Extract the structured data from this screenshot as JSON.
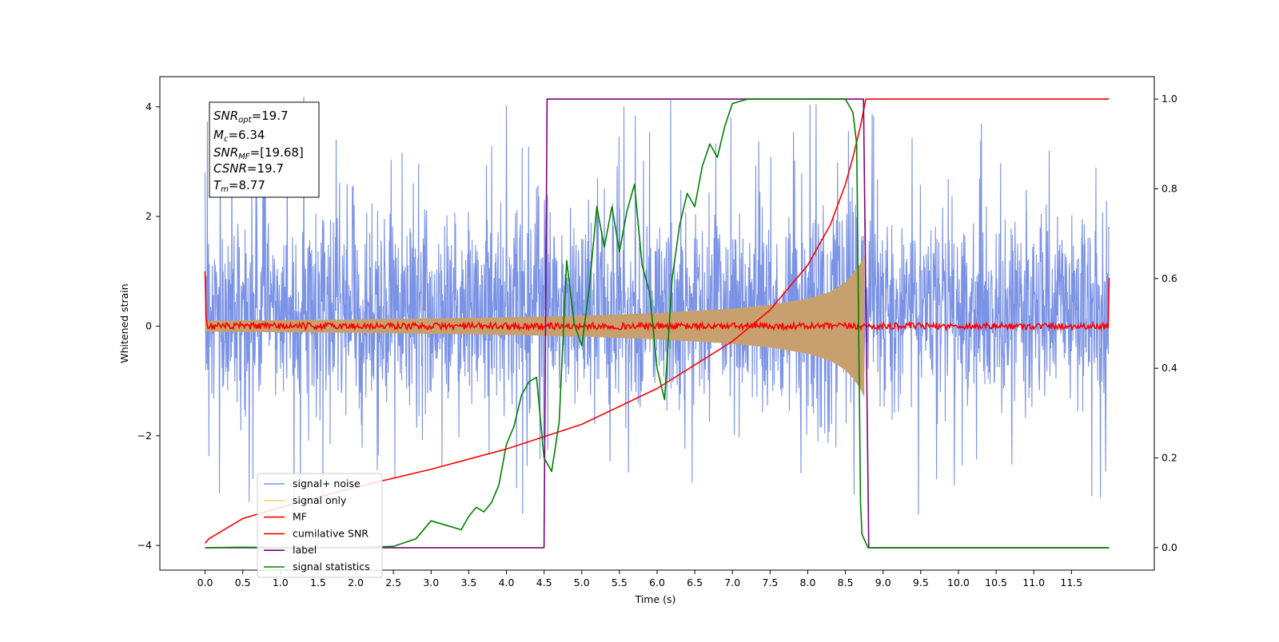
{
  "chart_data": {
    "type": "line",
    "xlabel": "Time (s)",
    "ylabel": "Whitened strain",
    "xlim": [
      -0.6,
      12.6
    ],
    "ylim_left": [
      -4.45,
      4.55
    ],
    "ylim_right": [
      -0.05,
      1.05
    ],
    "x_ticks": [
      "0.0",
      "0.5",
      "1.0",
      "1.5",
      "2.0",
      "2.5",
      "3.0",
      "3.5",
      "4.0",
      "4.5",
      "5.0",
      "5.5",
      "6.0",
      "6.5",
      "7.0",
      "7.5",
      "8.0",
      "8.5",
      "9.0",
      "9.5",
      "10.0",
      "10.5",
      "11.0",
      "11.5"
    ],
    "y_ticks_left": [
      "4",
      "2",
      "0",
      "−2",
      "−4"
    ],
    "y_ticks_right": [
      "1.0",
      "0.8",
      "0.6",
      "0.4",
      "0.2",
      "0.0"
    ],
    "annotation": {
      "snr_opt": {
        "symbol": "SNR",
        "sub": "opt",
        "value": "=19.7"
      },
      "mc": {
        "symbol": "M",
        "sub": "c",
        "value": "=6.34"
      },
      "snr_mf": {
        "symbol": "SNR",
        "sub": "MF",
        "value": "=[19.68]"
      },
      "csnr": {
        "symbol": "CSNR",
        "value": "=19.7"
      },
      "tm": {
        "symbol": "T",
        "sub": "m",
        "value": "=8.77"
      }
    },
    "legend": {
      "location": "lower-left",
      "entries": [
        {
          "label": "signal+ noise",
          "color": "#7b93e6"
        },
        {
          "label": "signal only",
          "color": "#ffd27f"
        },
        {
          "label": "MF",
          "color": "#ff0000"
        },
        {
          "label": "cumilative SNR",
          "color": "#ff0000"
        },
        {
          "label": "label",
          "color": "#800080"
        },
        {
          "label": "signal statistics",
          "color": "#008000"
        }
      ]
    },
    "series": [
      {
        "name": "signal+ noise",
        "axis": "left",
        "color": "#7b93e6",
        "x_range": [
          0,
          12
        ],
        "envelope_approx": [
          -3.5,
          4.2
        ],
        "typical_band": [
          -2.2,
          2.8
        ]
      },
      {
        "name": "signal only",
        "axis": "left",
        "color": "#c8a06e",
        "chirp_envelope": {
          "x": [
            0.0,
            2.0,
            4.0,
            5.0,
            6.0,
            7.0,
            7.5,
            8.0,
            8.3,
            8.5,
            8.6,
            8.7,
            8.75
          ],
          "amp": [
            0.1,
            0.12,
            0.16,
            0.19,
            0.24,
            0.32,
            0.39,
            0.5,
            0.63,
            0.8,
            0.95,
            1.15,
            1.3
          ]
        }
      },
      {
        "name": "MF",
        "axis": "left",
        "color": "#ff0000",
        "baseline": 0.0,
        "noise_amplitude": 0.06,
        "edge_values": [
          1.0,
          0.88
        ]
      },
      {
        "name": "cumilative SNR",
        "axis": "right",
        "color": "#ff0000",
        "x": [
          0.0,
          0.05,
          0.5,
          1.0,
          2.0,
          3.0,
          4.0,
          5.0,
          6.0,
          7.0,
          7.5,
          8.0,
          8.3,
          8.5,
          8.6,
          8.7,
          8.77,
          9.0,
          12.0
        ],
        "y": [
          0.01,
          0.02,
          0.065,
          0.09,
          0.135,
          0.175,
          0.22,
          0.275,
          0.355,
          0.46,
          0.53,
          0.63,
          0.72,
          0.81,
          0.87,
          0.94,
          1.0,
          1.0,
          1.0
        ]
      },
      {
        "name": "label",
        "axis": "right",
        "color": "#800080",
        "x": [
          0.0,
          4.5,
          4.54,
          8.7,
          8.74,
          8.81,
          12.0
        ],
        "y": [
          0.0,
          0.0,
          1.0,
          1.0,
          1.0,
          0.0,
          0.0
        ]
      },
      {
        "name": "signal statistics",
        "axis": "right",
        "color": "#008000",
        "x": [
          0.0,
          0.5,
          1.0,
          2.0,
          2.5,
          2.8,
          3.0,
          3.2,
          3.4,
          3.5,
          3.6,
          3.7,
          3.8,
          3.9,
          4.0,
          4.1,
          4.2,
          4.3,
          4.4,
          4.5,
          4.6,
          4.7,
          4.8,
          4.9,
          5.0,
          5.1,
          5.2,
          5.3,
          5.4,
          5.5,
          5.6,
          5.7,
          5.8,
          5.9,
          6.0,
          6.1,
          6.2,
          6.3,
          6.4,
          6.5,
          6.6,
          6.7,
          6.8,
          6.9,
          7.0,
          7.2,
          7.5,
          8.0,
          8.5,
          8.6,
          8.65,
          8.7,
          8.72,
          8.8,
          9.0,
          12.0
        ],
        "y": [
          0.0,
          0.001,
          0.0,
          0.0,
          0.003,
          0.02,
          0.06,
          0.05,
          0.04,
          0.07,
          0.09,
          0.08,
          0.1,
          0.14,
          0.23,
          0.27,
          0.34,
          0.37,
          0.38,
          0.2,
          0.17,
          0.28,
          0.64,
          0.5,
          0.45,
          0.58,
          0.76,
          0.67,
          0.76,
          0.66,
          0.75,
          0.81,
          0.63,
          0.57,
          0.4,
          0.33,
          0.6,
          0.72,
          0.79,
          0.76,
          0.85,
          0.9,
          0.87,
          0.94,
          0.99,
          1.0,
          1.0,
          1.0,
          1.0,
          0.97,
          0.9,
          0.1,
          0.03,
          0.0,
          0.0,
          0.0
        ]
      }
    ]
  }
}
